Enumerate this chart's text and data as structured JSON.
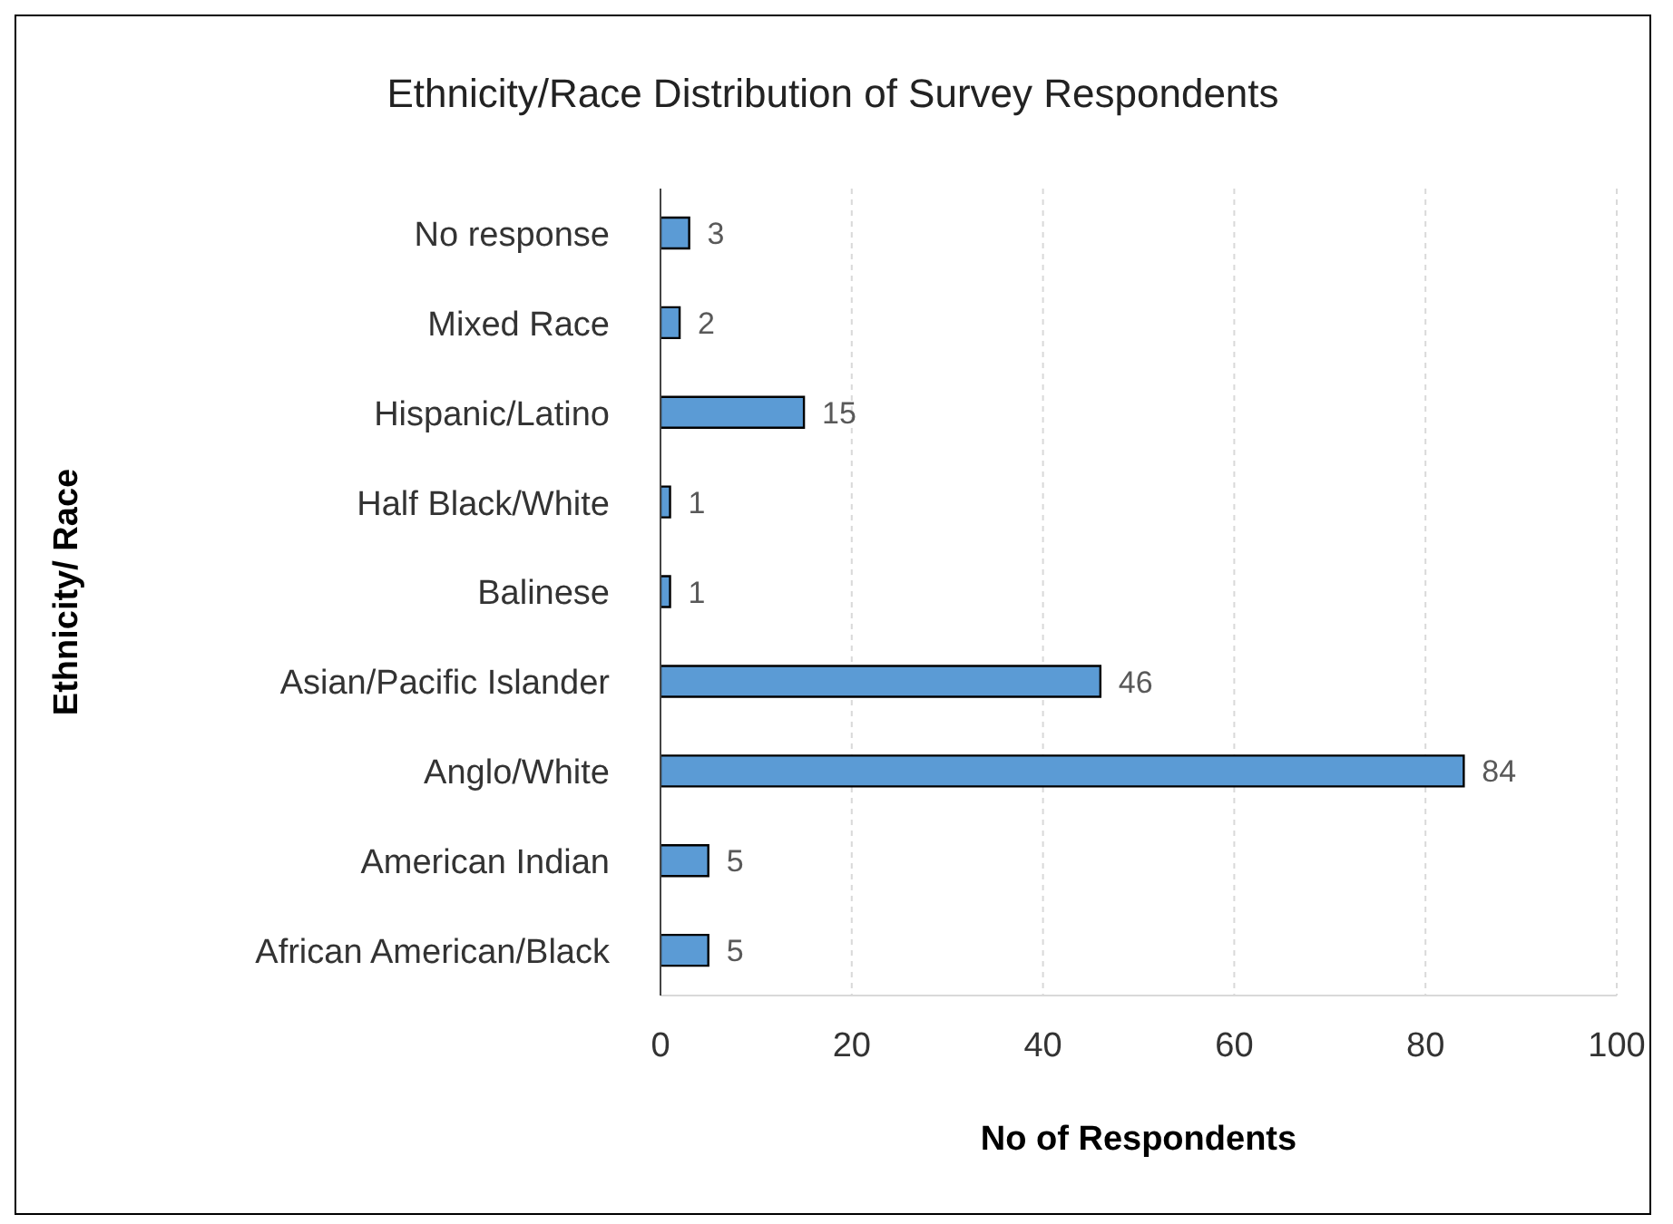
{
  "chart_data": {
    "type": "bar",
    "orientation": "horizontal",
    "title": "Ethnicity/Race Distribution of Survey Respondents",
    "xlabel": "No of Respondents",
    "ylabel": "Ethnicity/ Race",
    "categories": [
      "No response",
      "Mixed Race",
      "Hispanic/Latino",
      "Half Black/White",
      "Balinese",
      "Asian/Pacific Islander",
      "Anglo/White",
      "American Indian",
      "African American/Black"
    ],
    "values": [
      3,
      2,
      15,
      1,
      1,
      46,
      84,
      5,
      5
    ],
    "color": "#5b9bd5",
    "xlim": [
      0,
      100
    ],
    "xticks": [
      0,
      20,
      40,
      60,
      80,
      100
    ],
    "grid": "x",
    "data_labels": true
  }
}
